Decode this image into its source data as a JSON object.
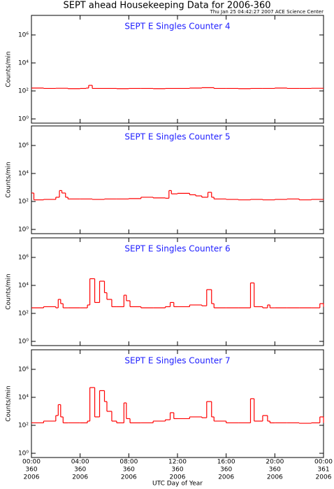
{
  "header": {
    "title": "SEPT ahead Housekeeping Data for 2006-360",
    "subtitle": "Thu Jan 25 04:42:27 2007 ACE Science Center"
  },
  "x_axis": {
    "label": "UTC Day of Year",
    "xlim": [
      0,
      24
    ],
    "xticks": [
      {
        "value": 0,
        "label": "00:00"
      },
      {
        "value": 4,
        "label": "04:00"
      },
      {
        "value": 8,
        "label": "08:00"
      },
      {
        "value": 12,
        "label": "12:00"
      },
      {
        "value": 16,
        "label": "16:00"
      },
      {
        "value": 20,
        "label": "20:00"
      },
      {
        "value": 24,
        "label": "00:00"
      }
    ],
    "tick_days": [
      "360",
      "360",
      "360",
      "360",
      "360",
      "360",
      "361"
    ],
    "tick_years": [
      "2006",
      "2006",
      "2006",
      "2006",
      "2006",
      "2006",
      "2006"
    ]
  },
  "chart_data": [
    {
      "type": "line",
      "title": "SEPT E Singles Counter 4",
      "ylabel": "Counts/min",
      "log_y": true,
      "color": "#ff0000",
      "ylim": [
        0.5,
        25000000
      ],
      "yticks": [
        {
          "value": 1,
          "label": "10⁰"
        },
        {
          "value": 100,
          "label": "10²"
        },
        {
          "value": 10000,
          "label": "10⁴"
        },
        {
          "value": 1000000,
          "label": "10⁶"
        }
      ],
      "x": [
        0,
        1,
        2,
        3,
        4,
        4.5,
        4.7,
        5,
        6,
        7,
        8,
        9,
        10,
        11,
        12,
        13,
        14,
        15,
        16,
        17,
        18,
        19,
        20,
        21,
        22,
        23,
        24
      ],
      "values": [
        160,
        150,
        155,
        145,
        150,
        160,
        250,
        150,
        150,
        145,
        150,
        150,
        145,
        150,
        150,
        160,
        170,
        150,
        150,
        145,
        150,
        150,
        160,
        150,
        150,
        155,
        150
      ]
    },
    {
      "type": "line",
      "title": "SEPT E Singles Counter 5",
      "ylabel": "Counts/min",
      "log_y": true,
      "color": "#ff0000",
      "ylim": [
        0.5,
        25000000
      ],
      "yticks": [
        {
          "value": 1,
          "label": "10⁰"
        },
        {
          "value": 100,
          "label": "10²"
        },
        {
          "value": 10000,
          "label": "10⁴"
        },
        {
          "value": 1000000,
          "label": "10⁶"
        }
      ],
      "x": [
        0,
        0.2,
        1,
        2,
        2.3,
        2.5,
        2.8,
        3,
        4,
        5,
        6,
        7,
        8,
        9,
        10,
        11,
        11.3,
        11.5,
        12,
        13,
        13.5,
        14,
        14.5,
        14.8,
        15,
        16,
        17,
        18,
        19,
        20,
        21,
        22,
        23,
        24
      ],
      "values": [
        400,
        130,
        140,
        200,
        600,
        400,
        200,
        150,
        150,
        140,
        150,
        150,
        160,
        200,
        180,
        170,
        600,
        350,
        380,
        300,
        250,
        200,
        450,
        200,
        150,
        140,
        130,
        140,
        130,
        140,
        150,
        130,
        140,
        130
      ]
    },
    {
      "type": "line",
      "title": "SEPT E Singles Counter 6",
      "ylabel": "Counts/min",
      "log_y": true,
      "color": "#ff0000",
      "ylim": [
        0.5,
        25000000
      ],
      "yticks": [
        {
          "value": 1,
          "label": "10⁰"
        },
        {
          "value": 100,
          "label": "10²"
        },
        {
          "value": 10000,
          "label": "10⁴"
        },
        {
          "value": 1000000,
          "label": "10⁶"
        }
      ],
      "x": [
        0,
        1,
        2,
        2.2,
        2.4,
        2.6,
        3,
        4,
        4.6,
        4.8,
        5.2,
        5.6,
        6,
        6.2,
        6.6,
        7,
        7.6,
        7.8,
        8.1,
        9,
        10,
        11,
        11.4,
        11.7,
        12,
        13,
        14,
        14.4,
        14.8,
        15,
        16,
        17,
        18,
        18.3,
        19,
        19.4,
        19.6,
        20,
        21,
        22,
        23,
        23.7,
        24
      ],
      "values": [
        250,
        300,
        250,
        1000,
        500,
        250,
        250,
        250,
        400,
        30000,
        600,
        20000,
        3000,
        1000,
        300,
        300,
        2000,
        800,
        300,
        250,
        250,
        300,
        600,
        300,
        300,
        400,
        350,
        5000,
        500,
        250,
        250,
        250,
        15000,
        300,
        250,
        400,
        250,
        250,
        250,
        250,
        250,
        500,
        300
      ]
    },
    {
      "type": "line",
      "title": "SEPT E Singles Counter 7",
      "ylabel": "Counts/min",
      "log_y": true,
      "color": "#ff0000",
      "ylim": [
        0.5,
        25000000
      ],
      "yticks": [
        {
          "value": 1,
          "label": "10⁰"
        },
        {
          "value": 100,
          "label": "10²"
        },
        {
          "value": 10000,
          "label": "10⁴"
        },
        {
          "value": 1000000,
          "label": "10⁶"
        }
      ],
      "x": [
        0,
        1,
        2,
        2.2,
        2.4,
        2.6,
        3,
        4,
        4.6,
        4.8,
        5.2,
        5.6,
        6,
        6.2,
        6.6,
        7,
        7.6,
        7.8,
        8.1,
        9,
        10,
        11,
        11.4,
        11.7,
        12,
        13,
        14,
        14.4,
        14.8,
        15,
        16,
        17,
        18,
        18.3,
        19,
        19.4,
        19.6,
        20,
        21,
        22,
        23,
        23.7,
        24
      ],
      "values": [
        150,
        200,
        500,
        3000,
        400,
        150,
        150,
        150,
        200,
        50000,
        400,
        30000,
        5000,
        1000,
        200,
        150,
        4000,
        300,
        150,
        150,
        200,
        250,
        800,
        300,
        300,
        400,
        350,
        5000,
        400,
        200,
        150,
        150,
        8000,
        200,
        500,
        200,
        150,
        150,
        150,
        140,
        150,
        400,
        150
      ]
    }
  ]
}
